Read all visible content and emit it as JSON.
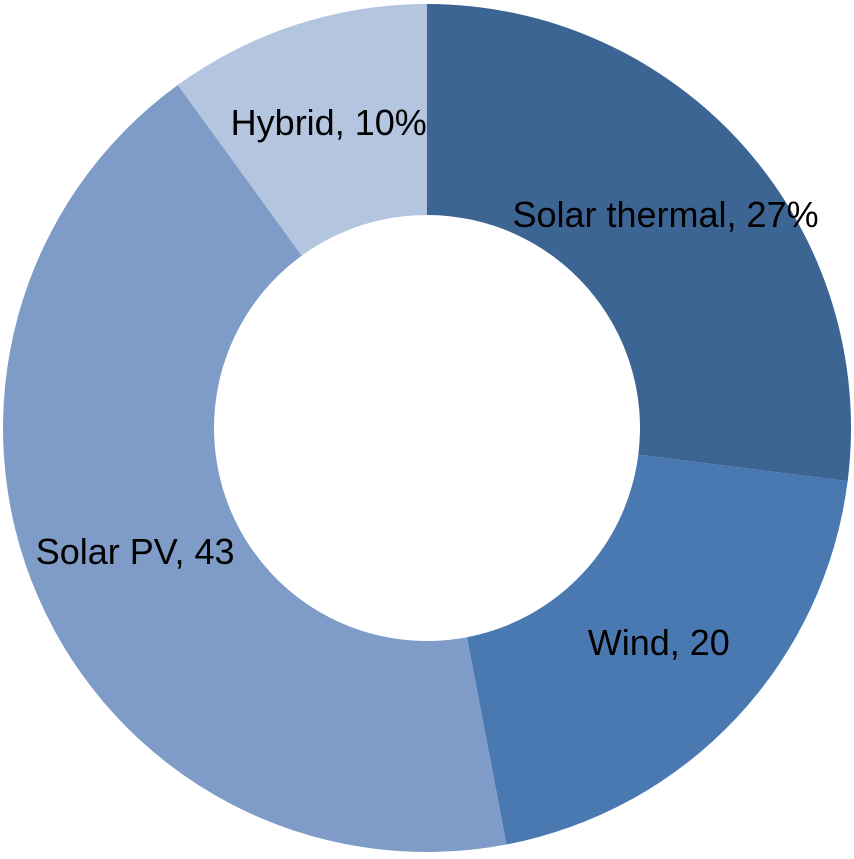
{
  "chart_data": {
    "type": "donut",
    "values": [
      27,
      20,
      43,
      10
    ],
    "value_labels": [
      "Solar thermal, 27%",
      "Wind, 20",
      "Solar PV, 43",
      "Hybrid, 10%"
    ],
    "colors": [
      "#3d6594",
      "#4a79b2",
      "#7f9cc8",
      "#b4c5df"
    ]
  }
}
